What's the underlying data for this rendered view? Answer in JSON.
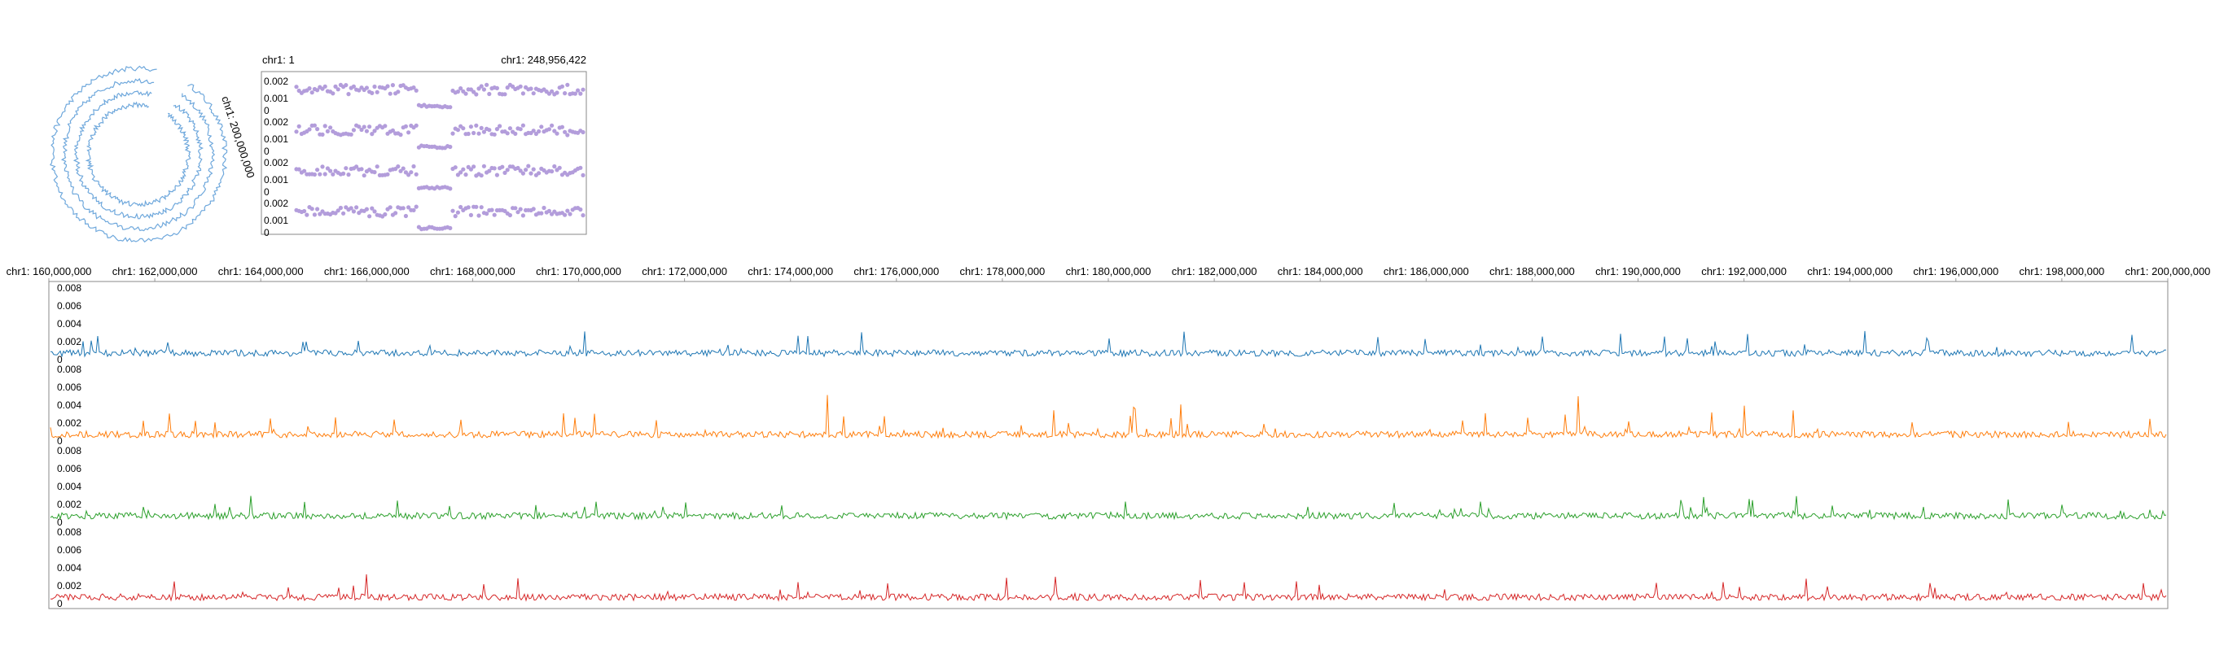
{
  "colors": {
    "circular": "#6fa8dc",
    "overview": "#b39ddb",
    "tracks": [
      "#1f77b4",
      "#ff7f0e",
      "#2ca02c",
      "#d62728"
    ]
  },
  "circular_view": {
    "label": "chr1: 200,000,000"
  },
  "overview_view": {
    "start_label": "chr1: 1",
    "end_label": "chr1: 248,956,422",
    "y_ticks": [
      "0.002",
      "0.001",
      "0"
    ]
  },
  "main_view": {
    "axis_labels": [
      "chr1: 160,000,000",
      "chr1: 162,000,000",
      "chr1: 164,000,000",
      "chr1: 166,000,000",
      "chr1: 168,000,000",
      "chr1: 170,000,000",
      "chr1: 172,000,000",
      "chr1: 174,000,000",
      "chr1: 176,000,000",
      "chr1: 178,000,000",
      "chr1: 180,000,000",
      "chr1: 182,000,000",
      "chr1: 184,000,000",
      "chr1: 186,000,000",
      "chr1: 188,000,000",
      "chr1: 190,000,000",
      "chr1: 192,000,000",
      "chr1: 194,000,000",
      "chr1: 196,000,000",
      "chr1: 198,000,000",
      "chr1: 200,000,000"
    ],
    "y_ticks": [
      "0.008",
      "0.006",
      "0.004",
      "0.002",
      "0"
    ]
  }
}
